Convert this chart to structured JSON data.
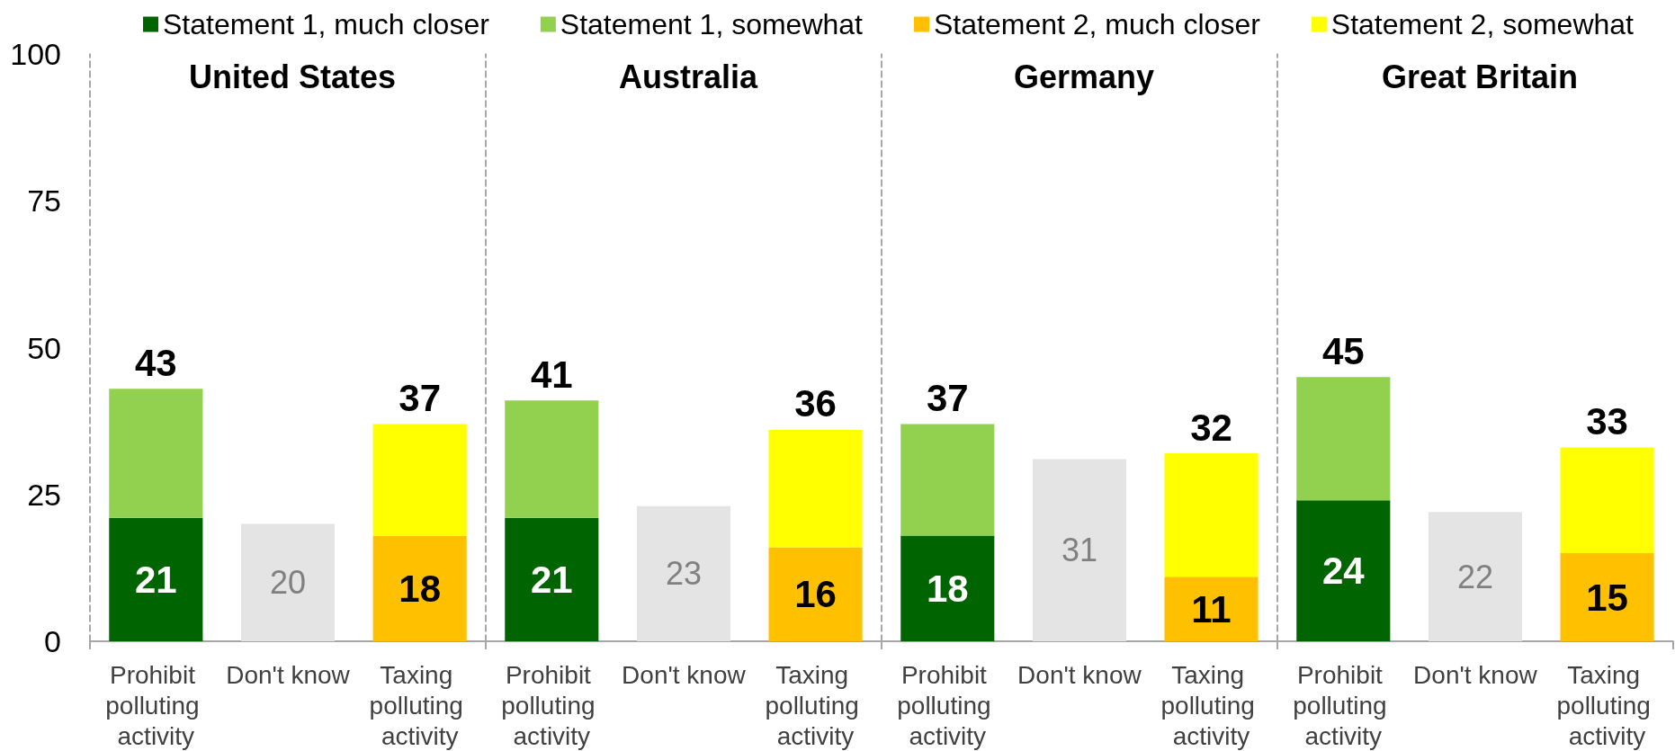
{
  "chart_data": [
    {
      "type": "bar",
      "title": "United States",
      "categories": [
        "Prohibit polluting activity",
        "Don't know",
        "Taxing polluting activity"
      ],
      "stacked": true,
      "ylim": [
        0,
        100
      ],
      "yticks": [
        0,
        25,
        50,
        75,
        100
      ],
      "legend": "top",
      "series": [
        {
          "name": "Statement 1, much closer",
          "color": "#006400",
          "values": [
            21,
            null,
            null
          ],
          "value_labels": [
            "21",
            null,
            null
          ]
        },
        {
          "name": "Statement 1, somewhat",
          "color": "#92d050",
          "values": [
            22,
            null,
            null
          ]
        },
        {
          "name": "Statement 2, much closer",
          "color": "#ffc000",
          "values": [
            null,
            null,
            18
          ],
          "value_labels": [
            null,
            null,
            "18"
          ]
        },
        {
          "name": "Statement 2, somewhat",
          "color": "#ffff00",
          "values": [
            null,
            null,
            19
          ]
        },
        {
          "color": "#e4e4e4",
          "values": [
            null,
            20,
            null
          ],
          "value_labels": [
            null,
            "20",
            null
          ]
        }
      ],
      "totals": [
        "43",
        null,
        "37"
      ]
    },
    {
      "type": "bar",
      "title": "Australia",
      "categories": [
        "Prohibit polluting activity",
        "Don't know",
        "Taxing polluting activity"
      ],
      "stacked": true,
      "ylim": [
        0,
        100
      ],
      "tick_labels": "x",
      "series": [
        {
          "color": "#006400",
          "values": [
            21,
            null,
            null
          ],
          "value_labels": [
            "21",
            null,
            null
          ]
        },
        {
          "color": "#92d050",
          "values": [
            20,
            null,
            null
          ]
        },
        {
          "color": "#ffc000",
          "values": [
            null,
            null,
            16
          ],
          "value_labels": [
            null,
            null,
            "16"
          ]
        },
        {
          "color": "#ffff00",
          "values": [
            null,
            null,
            20
          ]
        },
        {
          "color": "#e4e4e4",
          "values": [
            null,
            23,
            null
          ],
          "value_labels": [
            null,
            "23",
            null
          ]
        }
      ],
      "totals": [
        "41",
        null,
        "36"
      ]
    },
    {
      "type": "bar",
      "title": "Germany",
      "categories": [
        "Prohibit polluting activity",
        "Don't know",
        "Taxing polluting activity"
      ],
      "stacked": true,
      "ylim": [
        0,
        100
      ],
      "tick_labels": "x",
      "series": [
        {
          "color": "#006400",
          "values": [
            18,
            null,
            null
          ],
          "value_labels": [
            "18",
            null,
            null
          ]
        },
        {
          "color": "#92d050",
          "values": [
            19,
            null,
            null
          ]
        },
        {
          "color": "#ffc000",
          "values": [
            null,
            null,
            11
          ],
          "value_labels": [
            null,
            null,
            "11"
          ]
        },
        {
          "color": "#ffff00",
          "values": [
            null,
            null,
            21
          ]
        },
        {
          "color": "#e4e4e4",
          "values": [
            null,
            31,
            null
          ],
          "value_labels": [
            null,
            "31",
            null
          ]
        }
      ],
      "totals": [
        "37",
        null,
        "32"
      ]
    },
    {
      "type": "bar",
      "title": "Great Britain",
      "categories": [
        "Prohibit polluting activity",
        "Don't know",
        "Taxing polluting activity"
      ],
      "stacked": true,
      "ylim": [
        0,
        100
      ],
      "tick_labels": "x",
      "series": [
        {
          "color": "#006400",
          "values": [
            24,
            null,
            null
          ],
          "value_labels": [
            "24",
            null,
            null
          ]
        },
        {
          "color": "#92d050",
          "values": [
            21,
            null,
            null
          ]
        },
        {
          "color": "#ffc000",
          "values": [
            null,
            null,
            15
          ],
          "value_labels": [
            null,
            null,
            "15"
          ]
        },
        {
          "color": "#ffff00",
          "values": [
            null,
            null,
            18
          ]
        },
        {
          "color": "#e4e4e4",
          "values": [
            null,
            22,
            null
          ],
          "value_labels": [
            null,
            "22",
            null
          ]
        }
      ],
      "totals": [
        "45",
        null,
        "33"
      ]
    }
  ]
}
